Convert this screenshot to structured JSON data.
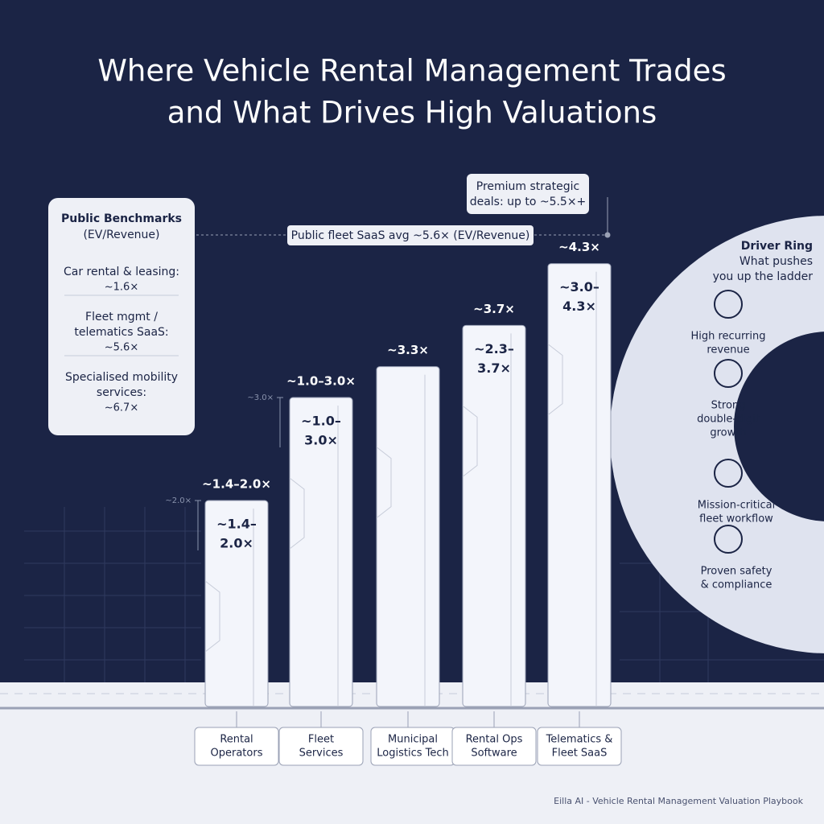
{
  "title_lines": [
    "Where Vehicle Rental Management Trades",
    "and What Drives High Valuations"
  ],
  "benchmarks": {
    "heading": "Public Benchmarks",
    "subheading": "(EV/Revenue)",
    "items": [
      {
        "label": [
          "Car rental & leasing:"
        ],
        "value": "~1.6×"
      },
      {
        "label": [
          "Fleet mgmt /",
          "telematics SaaS:"
        ],
        "value": "~5.6×"
      },
      {
        "label": [
          "Specialised mobility",
          "services:"
        ],
        "value": "~6.7×"
      }
    ]
  },
  "callout": [
    "Premium strategic",
    "deals: up to ~5.5×+"
  ],
  "avg_line": "Public fleet SaaS avg ~5.6× (EV/Revenue)",
  "bracket_ticks": [
    {
      "value": 3.0,
      "label": "~3.0×"
    },
    {
      "value": 2.0,
      "label": "~2.0×"
    }
  ],
  "bars": [
    {
      "category": [
        "Rental",
        "Operators"
      ],
      "top_label": "~1.4–2.0×",
      "range_label": [
        "~1.4–",
        "2.0×"
      ],
      "high": 2.0
    },
    {
      "category": [
        "Fleet",
        "Services"
      ],
      "top_label": "~1.0–3.0×",
      "range_label": [
        "~1.0–",
        "3.0×"
      ],
      "high": 3.0
    },
    {
      "category": [
        "Municipal",
        "Logistics Tech"
      ],
      "top_label": "~3.3×",
      "range_label": [],
      "high": 3.3
    },
    {
      "category": [
        "Rental Ops",
        "Software"
      ],
      "top_label": "~3.7×",
      "range_label": [
        "~2.3–",
        "3.7×"
      ],
      "high": 3.7
    },
    {
      "category": [
        "Telematics &",
        "Fleet SaaS"
      ],
      "top_label": "~4.3×",
      "range_label": [
        "~3.0–",
        "4.3×"
      ],
      "high": 4.3
    }
  ],
  "driver_ring": {
    "heading": "Driver Ring",
    "subheading": [
      "What pushes",
      "you up the ladder"
    ],
    "drivers": [
      [
        "High recurring",
        "revenue"
      ],
      [
        "Strong",
        "double-digit",
        "growth"
      ],
      [
        "Mission-critical",
        "fleet workflow"
      ],
      [
        "Proven safety",
        "& compliance"
      ]
    ]
  },
  "footer": "Eilla AI - Vehicle Rental Management Valuation Playbook"
}
